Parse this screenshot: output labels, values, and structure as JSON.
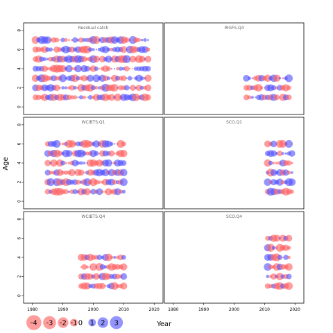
{
  "chart_data": {
    "type": "scatter",
    "subtype": "residual-bubble",
    "ylabel": "Age",
    "xlabel": "Year",
    "xlim": [
      1978,
      2022
    ],
    "ylim": [
      -0.5,
      8.5
    ],
    "x_ticks": [
      1980,
      1990,
      2000,
      2010,
      2020
    ],
    "y_ticks": [
      0,
      2,
      4,
      6,
      8
    ],
    "positive_color": "#4d4dff",
    "negative_color": "#ff5a5a",
    "legend": {
      "position": "bottom-left",
      "entries": [
        {
          "label": "-4",
          "value": -4
        },
        {
          "label": "-3",
          "value": -3
        },
        {
          "label": "-2",
          "value": -2
        },
        {
          "label": "-1",
          "value": -1
        },
        {
          "label": "0",
          "value": 0
        },
        {
          "label": "1",
          "value": 1
        },
        {
          "label": "2",
          "value": 2
        },
        {
          "label": "3",
          "value": 3
        }
      ]
    },
    "panels": [
      {
        "id": "residual-catch",
        "title": "Residual catch",
        "years": [
          1981,
          2018
        ],
        "ages": [
          1,
          2,
          3,
          4,
          5,
          6,
          7
        ],
        "seed": 11,
        "grid": {
          "row": 0,
          "col": 0
        },
        "show_x": false,
        "show_y": true
      },
      {
        "id": "irgfs-q4",
        "title": "IRGFS.Q4",
        "years": [
          2004,
          2018
        ],
        "ages": [
          1,
          2,
          3
        ],
        "seed": 23,
        "grid": {
          "row": 0,
          "col": 1
        },
        "show_x": false,
        "show_y": false
      },
      {
        "id": "wcibts-q1",
        "title": "WCIBTS.Q1",
        "years": [
          1985,
          2010
        ],
        "ages": [
          1,
          2,
          3,
          4,
          5,
          6
        ],
        "seed": 37,
        "grid": {
          "row": 1,
          "col": 0
        },
        "show_x": false,
        "show_y": true
      },
      {
        "id": "sco-q1",
        "title": "SCO.Q1",
        "years": [
          2011,
          2019
        ],
        "ages": [
          1,
          2,
          3,
          4,
          5,
          6
        ],
        "seed": 41,
        "grid": {
          "row": 1,
          "col": 1
        },
        "show_x": false,
        "show_y": false
      },
      {
        "id": "wcibts-q4",
        "title": "WCIBTS.Q4",
        "years": [
          1996,
          2010
        ],
        "ages": [
          1,
          2,
          3,
          4
        ],
        "seed": 53,
        "grid": {
          "row": 2,
          "col": 0
        },
        "show_x": true,
        "show_y": true
      },
      {
        "id": "sco-q4",
        "title": "SCO.Q4",
        "years": [
          2011,
          2018
        ],
        "ages": [
          1,
          2,
          3,
          4,
          5,
          6
        ],
        "seed": 67,
        "grid": {
          "row": 2,
          "col": 1
        },
        "show_x": true,
        "show_y": false
      }
    ]
  }
}
